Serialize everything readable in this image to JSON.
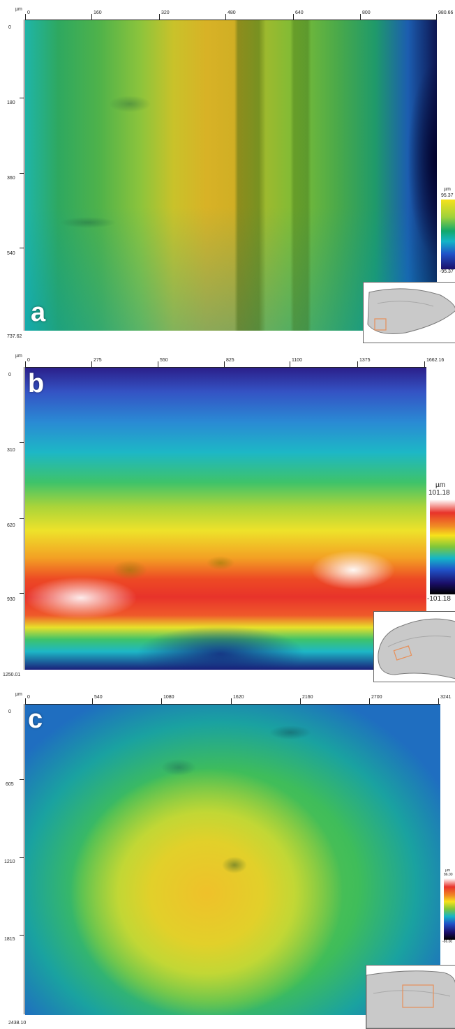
{
  "panels": [
    {
      "letter": "a",
      "unit": "µm",
      "x_ticks": [
        "0",
        "160",
        "320",
        "480",
        "640",
        "800",
        "980.66"
      ],
      "y_ticks": [
        "0",
        "180",
        "360",
        "540"
      ],
      "y_max": "737.62",
      "scale_unit": "µm",
      "scale_max": "95.37",
      "scale_min": "-95.37"
    },
    {
      "letter": "b",
      "unit": "µm",
      "x_ticks": [
        "0",
        "275",
        "550",
        "825",
        "1100",
        "1375",
        "1662.16"
      ],
      "y_ticks": [
        "0",
        "310",
        "620",
        "930"
      ],
      "y_max": "1250.01",
      "scale_unit": "µm",
      "scale_max": "101.18",
      "scale_min": "-101.18"
    },
    {
      "letter": "c",
      "unit": "µm",
      "x_ticks": [
        "0",
        "540",
        "1080",
        "1620",
        "2160",
        "2700",
        "3241"
      ],
      "y_ticks": [
        "0",
        "605",
        "1210",
        "1815"
      ],
      "y_max": "2438.10",
      "scale_unit": "µm",
      "scale_max": "86.00",
      "scale_min": "-86.00"
    }
  ],
  "colors": {
    "rainbow": [
      "#ffffff",
      "#e8332a",
      "#f08a24",
      "#f6e21b",
      "#7ec63a",
      "#12a86b",
      "#14b5c8",
      "#2052c8",
      "#1b0f6a",
      "#000000"
    ]
  }
}
